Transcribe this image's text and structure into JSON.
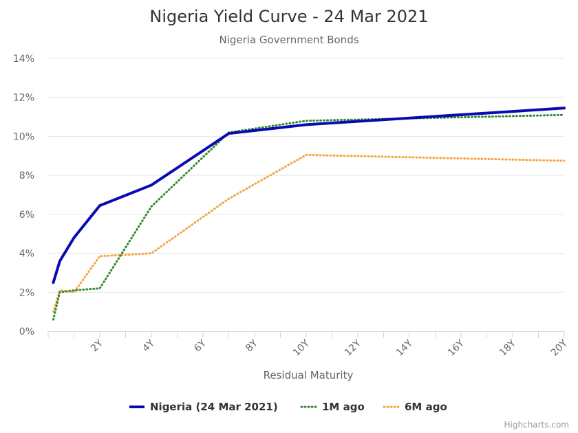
{
  "chart_data": {
    "type": "line",
    "title": "Nigeria Yield Curve - 24 Mar 2021",
    "subtitle": "Nigeria Government Bonds",
    "xlabel": "Residual Maturity",
    "ylabel": "",
    "xlim": [
      0,
      20
    ],
    "ylim": [
      0,
      14
    ],
    "x_ticks": [
      {
        "value": 2,
        "label": "2Y"
      },
      {
        "value": 4,
        "label": "4Y"
      },
      {
        "value": 6,
        "label": "6Y"
      },
      {
        "value": 8,
        "label": "8Y"
      },
      {
        "value": 10,
        "label": "10Y"
      },
      {
        "value": 12,
        "label": "12Y"
      },
      {
        "value": 14,
        "label": "14Y"
      },
      {
        "value": 16,
        "label": "16Y"
      },
      {
        "value": 18,
        "label": "18Y"
      },
      {
        "value": 20,
        "label": "20Y"
      }
    ],
    "y_ticks": [
      {
        "value": 0,
        "label": "0%"
      },
      {
        "value": 2,
        "label": "2%"
      },
      {
        "value": 4,
        "label": "4%"
      },
      {
        "value": 6,
        "label": "6%"
      },
      {
        "value": 8,
        "label": "8%"
      },
      {
        "value": 10,
        "label": "10%"
      },
      {
        "value": 12,
        "label": "12%"
      },
      {
        "value": 14,
        "label": "14%"
      }
    ],
    "grid": true,
    "legend_position": "bottom",
    "series": [
      {
        "name": "Nigeria (24 Mar 2021)",
        "color": "#0a0ab4",
        "style": "solid",
        "points": [
          [
            0.2,
            2.5
          ],
          [
            0.45,
            3.6
          ],
          [
            1.0,
            4.8
          ],
          [
            2.0,
            6.45
          ],
          [
            4.0,
            7.5
          ],
          [
            7.0,
            10.15
          ],
          [
            10.0,
            10.6
          ],
          [
            20.0,
            11.45
          ]
        ]
      },
      {
        "name": "1M ago",
        "color": "#2e8b2e",
        "style": "dotted",
        "points": [
          [
            0.2,
            0.6
          ],
          [
            0.45,
            2.0
          ],
          [
            1.0,
            2.1
          ],
          [
            2.0,
            2.2
          ],
          [
            4.0,
            6.4
          ],
          [
            7.0,
            10.2
          ],
          [
            10.0,
            10.8
          ],
          [
            20.0,
            11.1
          ]
        ]
      },
      {
        "name": "6M ago",
        "color": "#f5a442",
        "style": "dotted",
        "points": [
          [
            0.2,
            1.0
          ],
          [
            0.45,
            2.1
          ],
          [
            1.0,
            2.0
          ],
          [
            2.0,
            3.85
          ],
          [
            4.0,
            4.0
          ],
          [
            7.0,
            6.8
          ],
          [
            10.0,
            9.05
          ],
          [
            20.0,
            8.75
          ]
        ]
      }
    ]
  },
  "credits": "Highcharts.com"
}
